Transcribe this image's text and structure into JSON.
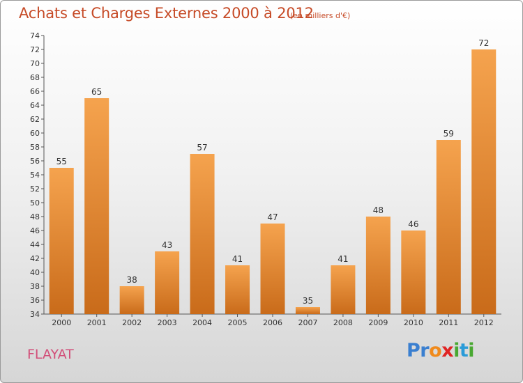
{
  "title": "Achats et Charges Externes 2000 à 2012",
  "subtitle": "(en milliers d'€)",
  "commune": "FLAYAT",
  "logo": {
    "letters": [
      "P",
      "r",
      "o",
      "x",
      "i",
      "t",
      "i"
    ],
    "colors": [
      "#3a7fd0",
      "#3a7fd0",
      "#f08a1c",
      "#e02424",
      "#49a832",
      "#2a9bd8",
      "#49a832"
    ]
  },
  "colors": {
    "title": "#c64a26",
    "bar_light": "#f5a34e",
    "bar_dark": "#c96b1a",
    "commune": "#d24f79"
  },
  "chart_data": {
    "type": "bar",
    "categories": [
      "2000",
      "2001",
      "2002",
      "2003",
      "2004",
      "2005",
      "2006",
      "2007",
      "2008",
      "2009",
      "2010",
      "2011",
      "2012"
    ],
    "values": [
      55,
      65,
      38,
      43,
      57,
      41,
      47,
      35,
      41,
      48,
      46,
      59,
      72
    ],
    "ylim": [
      34,
      74
    ],
    "yticks": [
      34,
      36,
      38,
      40,
      42,
      44,
      46,
      48,
      50,
      52,
      54,
      56,
      58,
      60,
      62,
      64,
      66,
      68,
      70,
      72,
      74
    ],
    "grid": false,
    "title": "Achats et Charges Externes 2000 à 2012",
    "xlabel": "",
    "ylabel": ""
  }
}
